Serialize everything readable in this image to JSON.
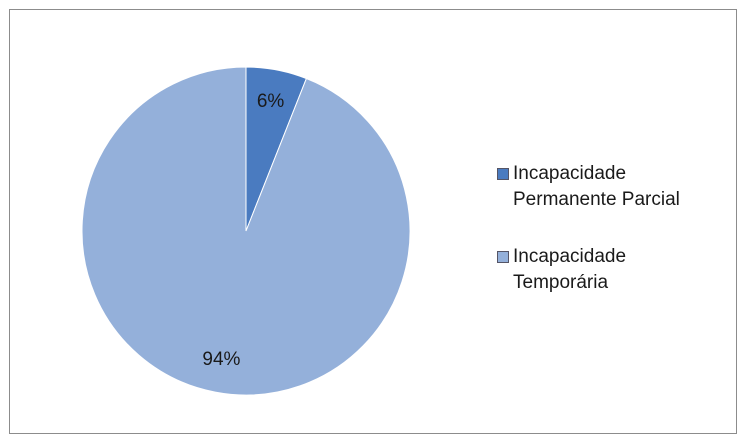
{
  "chart_data": {
    "type": "pie",
    "categories": [
      "Incapacidade Permanente Parcial",
      "Incapacidade Temporária"
    ],
    "values": [
      6,
      94
    ],
    "value_labels": [
      "6%",
      "94%"
    ],
    "colors": [
      "#4a7bc0",
      "#94b0da"
    ],
    "legend": "right"
  }
}
